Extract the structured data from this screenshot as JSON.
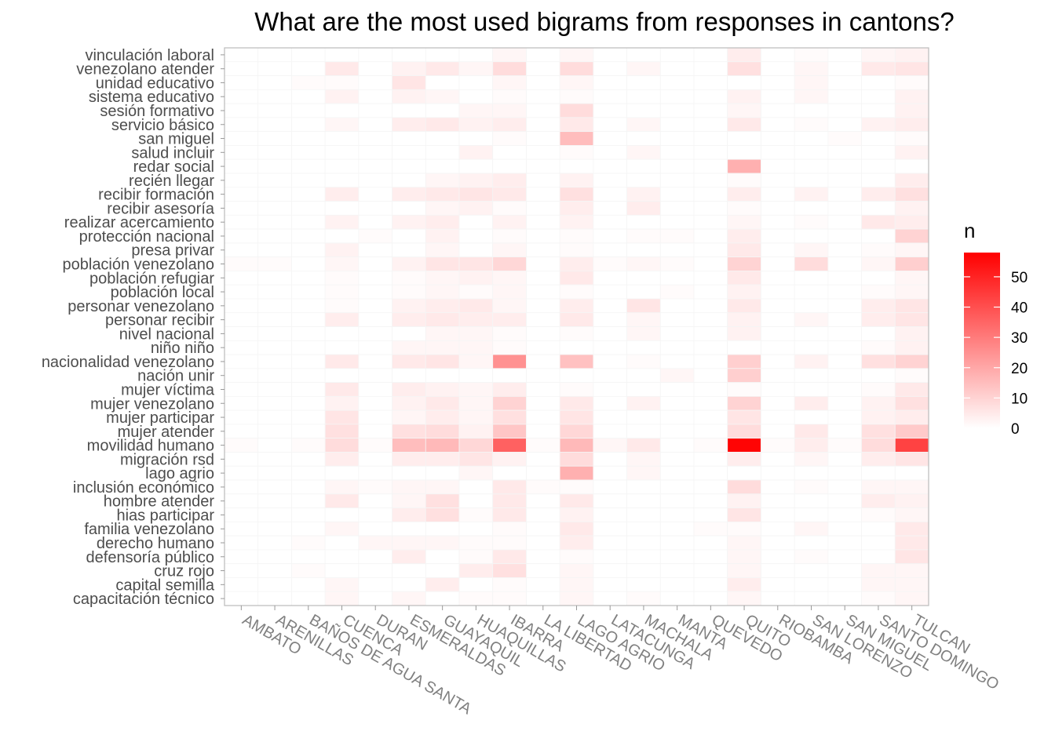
{
  "chart_data": {
    "type": "heatmap",
    "title": "What are the most used bigrams from responses in cantons?",
    "xlabel": "",
    "ylabel": "",
    "x_categories": [
      "AMBATO",
      "ARENILLAS",
      "BAÑOS DE AGUA SANTA",
      "CUENCA",
      "DURAN",
      "ESMERALDAS",
      "GUAYAQUIL",
      "HUAQUILLAS",
      "IBARRA",
      "LA LIBERTAD",
      "LAGO AGRIO",
      "LATACUNGA",
      "MACHALA",
      "MANTA",
      "QUEVEDO",
      "QUITO",
      "RIOBAMBA",
      "SAN LORENZO",
      "SAN MIGUEL",
      "SANTO DOMINGO",
      "TULCAN"
    ],
    "y_categories": [
      "vinculación laboral",
      "venezolano atender",
      "unidad educativo",
      "sistema educativo",
      "sesión formativo",
      "servicio básico",
      "san miguel",
      "salud incluir",
      "redar social",
      "recién llegar",
      "recibir formación",
      "recibir asesoría",
      "realizar acercamiento",
      "protección nacional",
      "presa privar",
      "población venezolano",
      "población refugiar",
      "población local",
      "personar venezolano",
      "personar recibir",
      "nivel nacional",
      "niño niño",
      "nacionalidad venezolano",
      "nación unir",
      "mujer víctima",
      "mujer venezolano",
      "mujer participar",
      "mujer atender",
      "movilidad humano",
      "migración rsd",
      "lago agrio",
      "inclusión económico",
      "hombre atender",
      "hias participar",
      "familia venezolano",
      "derecho humano",
      "defensoría público",
      "cruz rojo",
      "capital semilla",
      "capacitación técnico"
    ],
    "values": [
      [
        0,
        0,
        0,
        0,
        0,
        0,
        0,
        0,
        2,
        0,
        2,
        0,
        0,
        0,
        0,
        4,
        0,
        1,
        0,
        2,
        3
      ],
      [
        0,
        0,
        0,
        5,
        0,
        3,
        5,
        2,
        8,
        0,
        8,
        0,
        2,
        0,
        0,
        7,
        0,
        2,
        0,
        5,
        6
      ],
      [
        0,
        0,
        1,
        1,
        0,
        6,
        0,
        0,
        2,
        0,
        2,
        0,
        0,
        0,
        0,
        0,
        0,
        2,
        0,
        0,
        1
      ],
      [
        0,
        0,
        0,
        3,
        0,
        3,
        2,
        0,
        1,
        0,
        1,
        0,
        0,
        0,
        0,
        3,
        0,
        2,
        0,
        0,
        3
      ],
      [
        0,
        0,
        0,
        0,
        0,
        0,
        0,
        2,
        2,
        0,
        8,
        0,
        0,
        0,
        0,
        2,
        0,
        0,
        0,
        0,
        3
      ],
      [
        0,
        0,
        0,
        2,
        0,
        4,
        5,
        3,
        4,
        0,
        5,
        0,
        2,
        0,
        0,
        5,
        0,
        1,
        0,
        3,
        4
      ],
      [
        0,
        0,
        0,
        0,
        0,
        0,
        0,
        0,
        1,
        0,
        15,
        0,
        0,
        0,
        0,
        0,
        0,
        0,
        1,
        0,
        1
      ],
      [
        0,
        0,
        0,
        0,
        0,
        0,
        0,
        3,
        0,
        0,
        1,
        0,
        2,
        0,
        0,
        0,
        0,
        0,
        0,
        0,
        3
      ],
      [
        0,
        0,
        0,
        0,
        0,
        0,
        0,
        0,
        0,
        0,
        0,
        0,
        0,
        0,
        0,
        18,
        0,
        0,
        0,
        0,
        0
      ],
      [
        0,
        0,
        0,
        0,
        0,
        0,
        2,
        3,
        4,
        0,
        3,
        0,
        0,
        0,
        0,
        1,
        0,
        0,
        0,
        0,
        4
      ],
      [
        0,
        0,
        0,
        4,
        0,
        4,
        5,
        6,
        5,
        0,
        7,
        0,
        3,
        0,
        0,
        4,
        0,
        3,
        0,
        4,
        7
      ],
      [
        0,
        0,
        0,
        0,
        0,
        0,
        2,
        3,
        1,
        0,
        4,
        0,
        4,
        0,
        0,
        1,
        0,
        0,
        0,
        0,
        3
      ],
      [
        0,
        0,
        0,
        3,
        0,
        3,
        4,
        0,
        3,
        0,
        3,
        0,
        0,
        0,
        0,
        2,
        0,
        1,
        0,
        5,
        4
      ],
      [
        0,
        0,
        0,
        0,
        1,
        0,
        3,
        0,
        1,
        0,
        1,
        0,
        1,
        1,
        0,
        4,
        0,
        0,
        0,
        0,
        10
      ],
      [
        0,
        0,
        0,
        3,
        0,
        0,
        2,
        0,
        2,
        0,
        1,
        0,
        0,
        0,
        0,
        5,
        0,
        2,
        0,
        1,
        2
      ],
      [
        1,
        1,
        0,
        2,
        0,
        3,
        6,
        6,
        9,
        0,
        4,
        1,
        2,
        1,
        0,
        10,
        0,
        8,
        0,
        2,
        11
      ],
      [
        0,
        0,
        0,
        1,
        0,
        1,
        2,
        3,
        2,
        0,
        5,
        0,
        0,
        0,
        0,
        5,
        0,
        0,
        0,
        0,
        2
      ],
      [
        0,
        0,
        0,
        1,
        0,
        1,
        2,
        1,
        2,
        0,
        1,
        0,
        0,
        1,
        0,
        3,
        0,
        0,
        0,
        1,
        2
      ],
      [
        0,
        0,
        0,
        1,
        0,
        3,
        4,
        5,
        2,
        0,
        4,
        0,
        6,
        0,
        0,
        5,
        0,
        0,
        0,
        4,
        6
      ],
      [
        0,
        0,
        0,
        4,
        0,
        4,
        5,
        4,
        4,
        0,
        5,
        0,
        2,
        0,
        0,
        3,
        0,
        2,
        0,
        4,
        6
      ],
      [
        0,
        0,
        0,
        0,
        0,
        0,
        2,
        2,
        1,
        0,
        1,
        0,
        2,
        0,
        0,
        3,
        0,
        0,
        0,
        0,
        3
      ],
      [
        0,
        0,
        0,
        0,
        0,
        2,
        2,
        2,
        1,
        0,
        0,
        0,
        0,
        0,
        0,
        0,
        0,
        0,
        0,
        1,
        3
      ],
      [
        0,
        0,
        0,
        5,
        0,
        5,
        6,
        2,
        25,
        0,
        14,
        0,
        1,
        0,
        0,
        11,
        0,
        3,
        0,
        7,
        10
      ],
      [
        0,
        0,
        0,
        0,
        0,
        0,
        0,
        0,
        0,
        0,
        0,
        0,
        0,
        2,
        0,
        11,
        0,
        0,
        0,
        0,
        1
      ],
      [
        0,
        0,
        0,
        5,
        0,
        4,
        3,
        2,
        4,
        0,
        1,
        0,
        0,
        0,
        0,
        1,
        0,
        0,
        0,
        1,
        5
      ],
      [
        0,
        0,
        0,
        3,
        0,
        3,
        5,
        2,
        10,
        0,
        5,
        0,
        3,
        0,
        0,
        10,
        0,
        4,
        0,
        3,
        7
      ],
      [
        0,
        0,
        0,
        6,
        0,
        2,
        4,
        2,
        7,
        0,
        6,
        0,
        0,
        0,
        0,
        6,
        0,
        0,
        0,
        3,
        4
      ],
      [
        0,
        0,
        0,
        7,
        0,
        7,
        8,
        3,
        13,
        0,
        9,
        0,
        0,
        0,
        0,
        8,
        0,
        5,
        0,
        7,
        12
      ],
      [
        1,
        0,
        1,
        8,
        1,
        15,
        16,
        9,
        36,
        1,
        16,
        2,
        5,
        0,
        1,
        57,
        1,
        4,
        1,
        8,
        43
      ],
      [
        0,
        0,
        0,
        4,
        0,
        4,
        4,
        6,
        3,
        0,
        8,
        0,
        2,
        0,
        0,
        4,
        0,
        2,
        0,
        4,
        6
      ],
      [
        0,
        0,
        0,
        0,
        0,
        0,
        0,
        2,
        0,
        0,
        18,
        0,
        2,
        0,
        0,
        0,
        0,
        0,
        0,
        0,
        0
      ],
      [
        0,
        0,
        0,
        2,
        1,
        2,
        2,
        0,
        5,
        1,
        1,
        0,
        0,
        0,
        0,
        8,
        0,
        1,
        0,
        2,
        2
      ],
      [
        0,
        0,
        0,
        5,
        0,
        2,
        7,
        0,
        5,
        0,
        5,
        0,
        0,
        0,
        0,
        3,
        0,
        0,
        0,
        4,
        3
      ],
      [
        0,
        0,
        0,
        0,
        0,
        4,
        7,
        1,
        5,
        0,
        3,
        0,
        0,
        0,
        0,
        6,
        0,
        0,
        0,
        1,
        2
      ],
      [
        0,
        0,
        0,
        2,
        0,
        0,
        0,
        0,
        1,
        0,
        5,
        0,
        0,
        0,
        1,
        1,
        0,
        2,
        0,
        0,
        5
      ],
      [
        0,
        0,
        1,
        0,
        2,
        2,
        2,
        1,
        1,
        0,
        4,
        0,
        0,
        0,
        0,
        2,
        0,
        0,
        0,
        0,
        5
      ],
      [
        0,
        0,
        0,
        0,
        0,
        4,
        0,
        1,
        5,
        0,
        1,
        0,
        0,
        0,
        0,
        2,
        0,
        1,
        0,
        0,
        6
      ],
      [
        0,
        0,
        1,
        0,
        0,
        0,
        0,
        4,
        7,
        0,
        2,
        0,
        0,
        0,
        0,
        2,
        0,
        0,
        0,
        2,
        2
      ],
      [
        0,
        0,
        0,
        2,
        0,
        0,
        4,
        0,
        1,
        0,
        2,
        0,
        0,
        0,
        0,
        4,
        0,
        0,
        0,
        2,
        2
      ],
      [
        0,
        0,
        0,
        2,
        0,
        2,
        0,
        1,
        1,
        0,
        2,
        0,
        1,
        0,
        0,
        2,
        0,
        0,
        0,
        1,
        2
      ]
    ],
    "legend": {
      "title": "n",
      "ticks": [
        0,
        10,
        20,
        30,
        40,
        50
      ],
      "min": 0,
      "max": 58,
      "low_color": "#ffffff",
      "high_color": "#ff0000",
      "placement": "right"
    },
    "grid": true,
    "colors": {
      "panel_border": "#bfbfbf",
      "tile_border": "#f5f5f5",
      "axis_tick": "#999999"
    }
  }
}
